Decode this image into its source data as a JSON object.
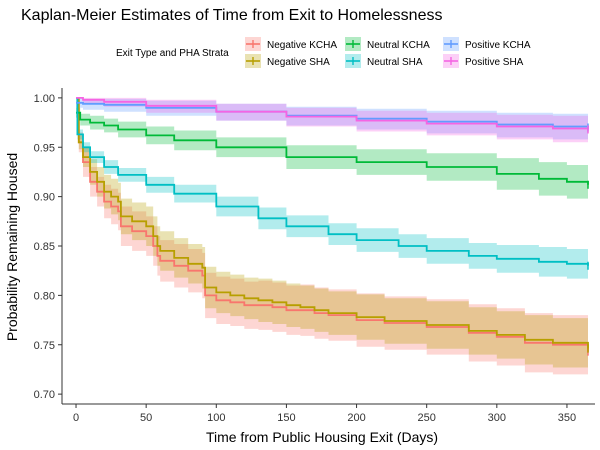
{
  "chart_data": {
    "type": "line",
    "title": "Kaplan-Meier Estimates of Time from Exit to Homelessness",
    "xlabel": "Time from Public Housing Exit (Days)",
    "ylabel": "Probability Remaining Housed",
    "xlim": [
      -10,
      370
    ],
    "ylim": [
      0.69,
      1.01
    ],
    "xticks": [
      0,
      50,
      100,
      150,
      200,
      250,
      300,
      350
    ],
    "yticks": [
      0.7,
      0.75,
      0.8,
      0.85,
      0.9,
      0.95,
      1.0
    ],
    "ytick_labels": [
      "0.70",
      "0.75",
      "0.80",
      "0.85",
      "0.90",
      "0.95",
      "1.00"
    ],
    "grid": false,
    "legend": {
      "title": "Exit Type and PHA Strata",
      "position": "top",
      "columns": 3
    },
    "series": [
      {
        "name": "Negative KCHA",
        "color": "#F8766D",
        "x": [
          0,
          2,
          5,
          10,
          15,
          20,
          25,
          30,
          32,
          40,
          50,
          55,
          58,
          60,
          70,
          80,
          90,
          92,
          100,
          110,
          120,
          130,
          140,
          150,
          160,
          170,
          180,
          200,
          220,
          250,
          280,
          300,
          320,
          340,
          365
        ],
        "y": [
          1.0,
          0.955,
          0.935,
          0.915,
          0.905,
          0.895,
          0.89,
          0.885,
          0.87,
          0.865,
          0.86,
          0.85,
          0.84,
          0.835,
          0.83,
          0.825,
          0.82,
          0.8,
          0.795,
          0.793,
          0.79,
          0.79,
          0.788,
          0.785,
          0.785,
          0.782,
          0.78,
          0.775,
          0.772,
          0.768,
          0.762,
          0.758,
          0.752,
          0.75,
          0.743
        ],
        "lower": [
          1.0,
          0.945,
          0.92,
          0.9,
          0.89,
          0.878,
          0.872,
          0.866,
          0.85,
          0.845,
          0.84,
          0.83,
          0.82,
          0.814,
          0.808,
          0.803,
          0.797,
          0.777,
          0.771,
          0.769,
          0.766,
          0.765,
          0.763,
          0.76,
          0.759,
          0.756,
          0.754,
          0.748,
          0.745,
          0.74,
          0.733,
          0.729,
          0.722,
          0.72,
          0.724
        ],
        "upper": [
          1.0,
          0.965,
          0.95,
          0.93,
          0.92,
          0.912,
          0.908,
          0.904,
          0.89,
          0.885,
          0.88,
          0.87,
          0.86,
          0.856,
          0.852,
          0.847,
          0.843,
          0.823,
          0.819,
          0.817,
          0.814,
          0.815,
          0.813,
          0.81,
          0.811,
          0.808,
          0.806,
          0.802,
          0.799,
          0.796,
          0.791,
          0.787,
          0.782,
          0.78,
          0.762
        ]
      },
      {
        "name": "Negative SHA",
        "color": "#B79F00",
        "x": [
          0,
          2,
          5,
          10,
          15,
          20,
          25,
          30,
          32,
          40,
          50,
          55,
          58,
          60,
          70,
          80,
          90,
          92,
          100,
          110,
          120,
          130,
          140,
          150,
          160,
          170,
          180,
          200,
          220,
          250,
          280,
          300,
          320,
          340,
          365
        ],
        "y": [
          1.0,
          0.955,
          0.94,
          0.925,
          0.915,
          0.905,
          0.9,
          0.895,
          0.88,
          0.875,
          0.87,
          0.86,
          0.85,
          0.845,
          0.838,
          0.832,
          0.828,
          0.808,
          0.803,
          0.8,
          0.797,
          0.795,
          0.793,
          0.79,
          0.788,
          0.785,
          0.782,
          0.778,
          0.774,
          0.77,
          0.764,
          0.76,
          0.755,
          0.752,
          0.746
        ],
        "lower": [
          1.0,
          0.948,
          0.93,
          0.912,
          0.9,
          0.888,
          0.882,
          0.876,
          0.862,
          0.856,
          0.85,
          0.84,
          0.83,
          0.825,
          0.818,
          0.812,
          0.807,
          0.787,
          0.782,
          0.779,
          0.776,
          0.773,
          0.771,
          0.768,
          0.766,
          0.763,
          0.76,
          0.755,
          0.751,
          0.746,
          0.74,
          0.736,
          0.73,
          0.727,
          0.738
        ],
        "upper": [
          1.0,
          0.962,
          0.95,
          0.938,
          0.93,
          0.922,
          0.918,
          0.914,
          0.898,
          0.894,
          0.89,
          0.88,
          0.87,
          0.865,
          0.858,
          0.852,
          0.849,
          0.829,
          0.824,
          0.821,
          0.818,
          0.817,
          0.815,
          0.812,
          0.81,
          0.807,
          0.804,
          0.801,
          0.797,
          0.794,
          0.788,
          0.784,
          0.78,
          0.777,
          0.755
        ]
      },
      {
        "name": "Neutral KCHA",
        "color": "#00BA38",
        "x": [
          0,
          3,
          10,
          20,
          30,
          50,
          70,
          100,
          150,
          200,
          250,
          300,
          330,
          350,
          365
        ],
        "y": [
          0.985,
          0.978,
          0.975,
          0.972,
          0.968,
          0.962,
          0.957,
          0.95,
          0.94,
          0.935,
          0.93,
          0.923,
          0.918,
          0.915,
          0.912
        ],
        "lower": [
          0.98,
          0.972,
          0.968,
          0.965,
          0.96,
          0.953,
          0.947,
          0.94,
          0.928,
          0.922,
          0.916,
          0.907,
          0.901,
          0.898,
          0.898
        ],
        "upper": [
          0.99,
          0.984,
          0.982,
          0.979,
          0.976,
          0.971,
          0.967,
          0.96,
          0.952,
          0.948,
          0.944,
          0.939,
          0.935,
          0.932,
          0.926
        ]
      },
      {
        "name": "Neutral SHA",
        "color": "#00BFC4",
        "x": [
          0,
          1,
          5,
          10,
          20,
          30,
          50,
          70,
          100,
          130,
          150,
          180,
          200,
          230,
          250,
          280,
          300,
          330,
          350,
          365
        ],
        "y": [
          1.0,
          0.963,
          0.95,
          0.94,
          0.93,
          0.922,
          0.912,
          0.903,
          0.89,
          0.878,
          0.87,
          0.862,
          0.856,
          0.85,
          0.845,
          0.84,
          0.837,
          0.834,
          0.832,
          0.83
        ],
        "lower": [
          1.0,
          0.958,
          0.945,
          0.934,
          0.923,
          0.915,
          0.904,
          0.894,
          0.88,
          0.867,
          0.859,
          0.851,
          0.844,
          0.838,
          0.832,
          0.827,
          0.823,
          0.819,
          0.817,
          0.826
        ],
        "upper": [
          1.0,
          0.968,
          0.955,
          0.946,
          0.937,
          0.929,
          0.92,
          0.912,
          0.9,
          0.889,
          0.881,
          0.873,
          0.868,
          0.862,
          0.858,
          0.853,
          0.851,
          0.849,
          0.847,
          0.834
        ]
      },
      {
        "name": "Positive KCHA",
        "color": "#619CFF",
        "x": [
          0,
          5,
          20,
          50,
          100,
          150,
          200,
          250,
          300,
          340,
          365
        ],
        "y": [
          0.995,
          0.994,
          0.993,
          0.99,
          0.986,
          0.982,
          0.979,
          0.976,
          0.973,
          0.971,
          0.97
        ],
        "lower": [
          0.99,
          0.988,
          0.986,
          0.982,
          0.977,
          0.972,
          0.968,
          0.964,
          0.96,
          0.958,
          0.964
        ],
        "upper": [
          1.0,
          0.999,
          0.999,
          0.997,
          0.994,
          0.991,
          0.989,
          0.987,
          0.985,
          0.984,
          0.976
        ]
      },
      {
        "name": "Positive SHA",
        "color": "#F564E3",
        "x": [
          0,
          5,
          20,
          50,
          100,
          150,
          200,
          250,
          300,
          340,
          365
        ],
        "y": [
          1.0,
          0.998,
          0.996,
          0.992,
          0.986,
          0.981,
          0.977,
          0.974,
          0.971,
          0.969,
          0.968
        ],
        "lower": [
          1.0,
          0.994,
          0.991,
          0.985,
          0.977,
          0.971,
          0.966,
          0.962,
          0.958,
          0.955,
          0.962
        ],
        "upper": [
          1.0,
          1.0,
          1.0,
          0.998,
          0.994,
          0.99,
          0.987,
          0.985,
          0.983,
          0.982,
          0.974
        ]
      }
    ]
  }
}
